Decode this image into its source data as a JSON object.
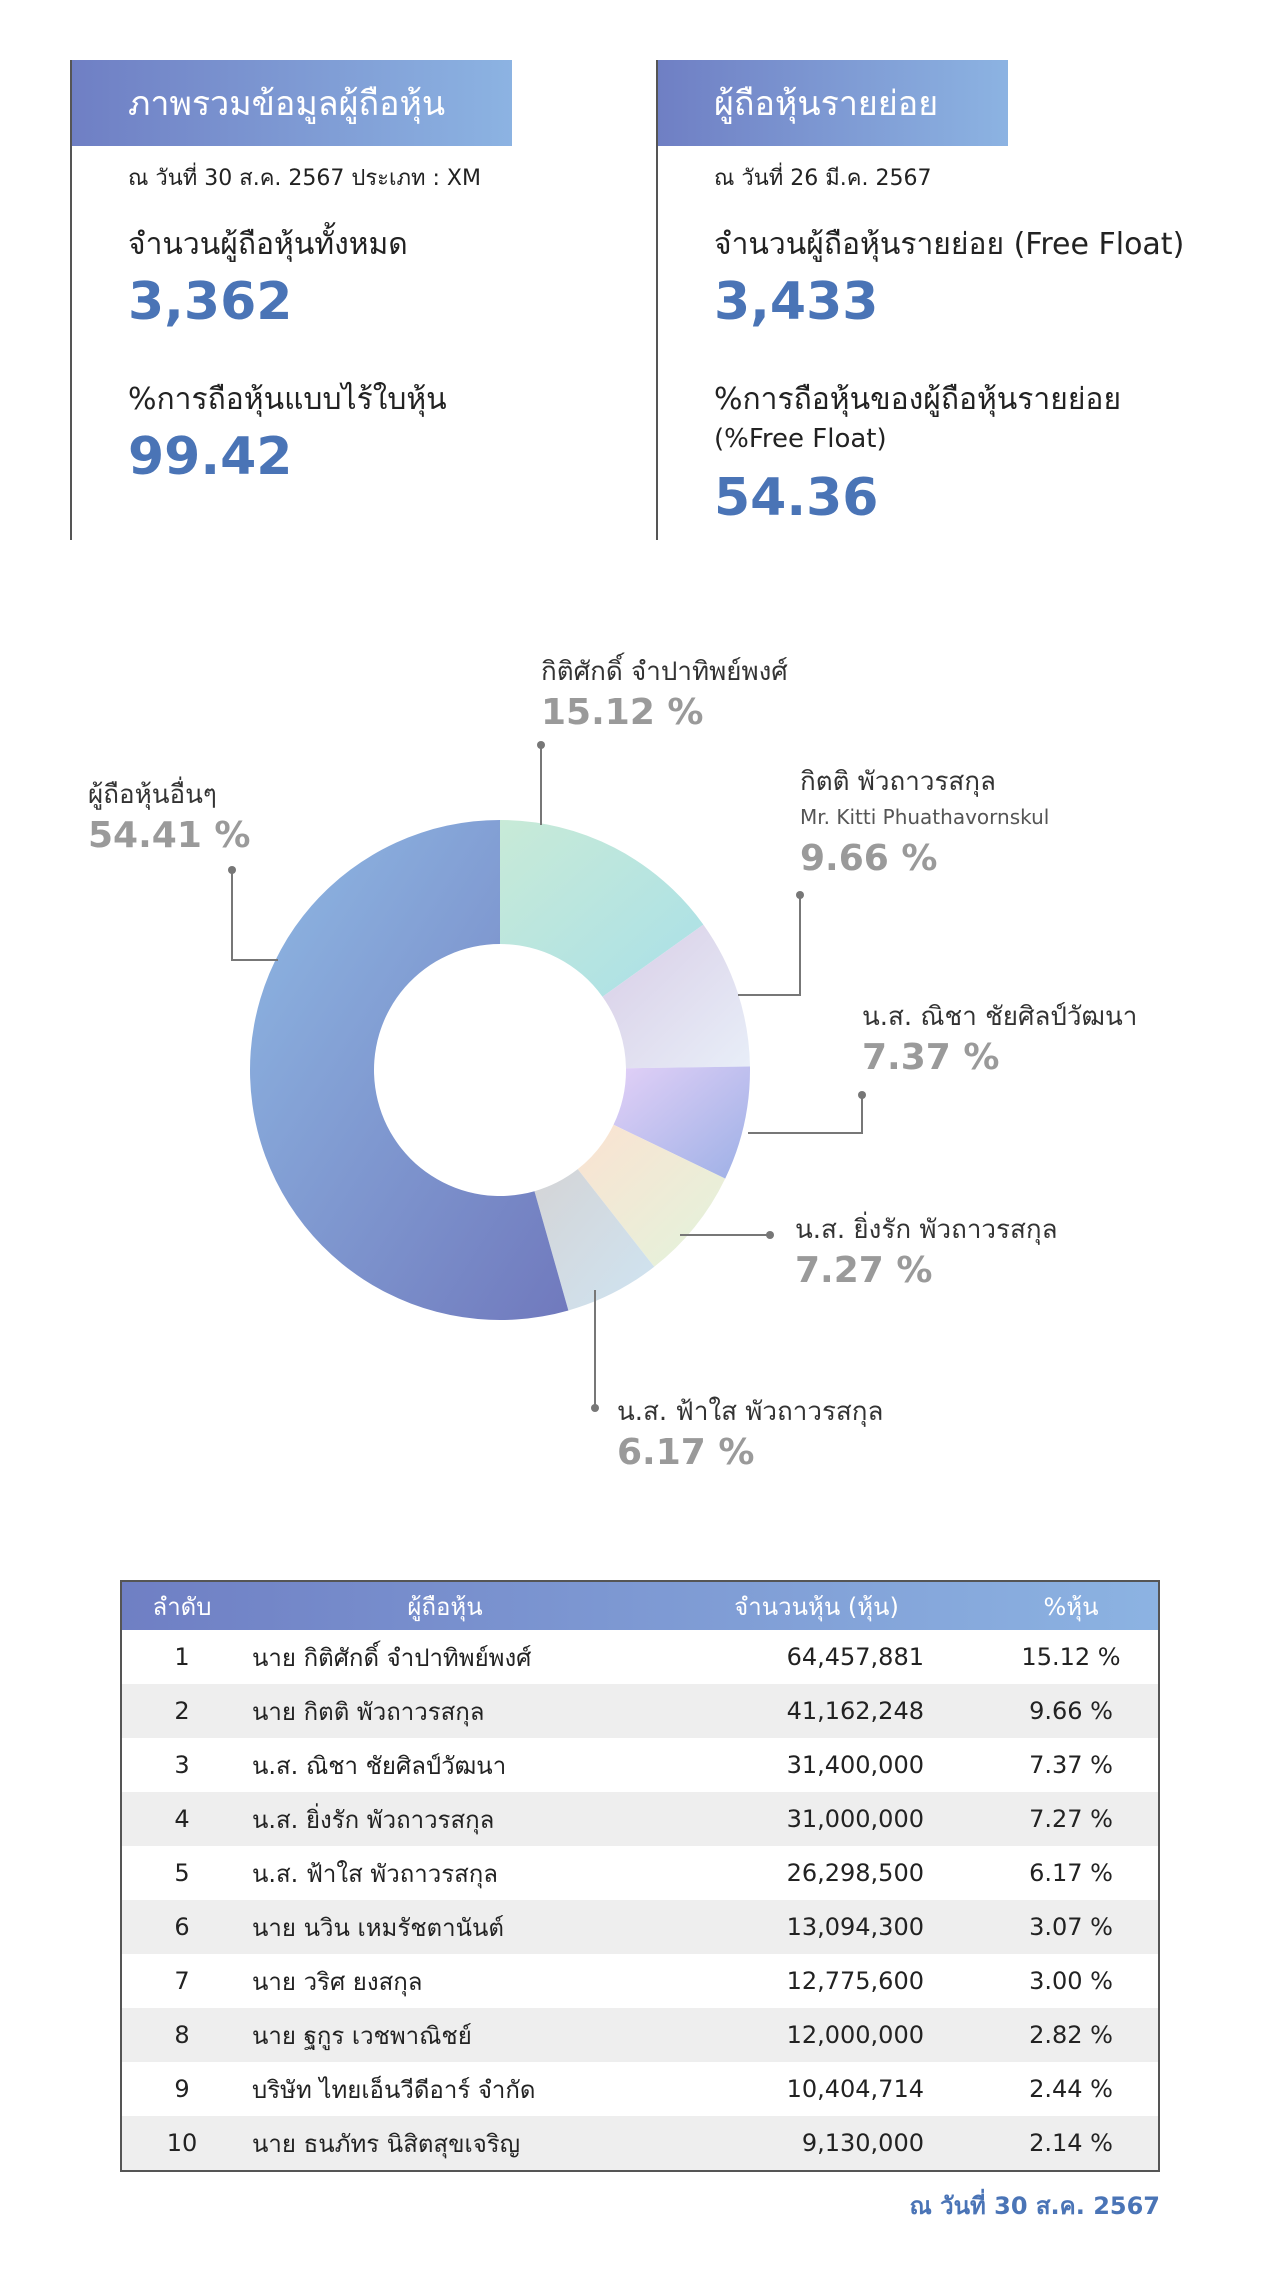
{
  "overview": {
    "title": "ภาพรวมข้อมูลผู้ถือหุ้น",
    "as_of": "ณ วันที่ 30 ส.ค. 2567  ประเภท : XM",
    "total_label": "จำนวนผู้ถือหุ้นทั้งหมด",
    "total_value": "3,362",
    "scripless_label": "%การถือหุ้นแบบไร้ใบหุ้น",
    "scripless_value": "99.42"
  },
  "minor": {
    "title": "ผู้ถือหุ้นรายย่อย",
    "as_of": "ณ วันที่ 26 มี.ค. 2567",
    "count_label": "จำนวนผู้ถือหุ้นรายย่อย (Free Float)",
    "count_value": "3,433",
    "pct_label_1": "%การถือหุ้นของผู้ถือหุ้นรายย่อย",
    "pct_label_2": "(%Free Float)",
    "pct_value": "54.36"
  },
  "chart_data": {
    "type": "pie",
    "labels": [
      "กิติศักดิ์ จำปาทิพย์พงศ์",
      "กิตติ พัวถาวรสกุล",
      "น.ส. ณิชา ชัยศิลป์วัฒนา",
      "น.ส. ยิ่งรัก พัวถาวรสกุล",
      "น.ส. ฟ้าใส พัวถาวรสกุล",
      "ผู้ถือหุ้นอื่นๆ"
    ],
    "values": [
      15.12,
      9.66,
      7.37,
      7.27,
      6.17,
      54.41
    ],
    "value_labels": [
      "15.12 %",
      "9.66 %",
      "7.37 %",
      "7.27 %",
      "6.17 %",
      "54.41 %"
    ],
    "sublabels": [
      "",
      "Mr. Kitti Phuathavornskul",
      "",
      "",
      "",
      ""
    ],
    "colors": [
      [
        "#c8ead7",
        "#a9e0e8"
      ],
      [
        "#d8cde6",
        "#e8eef8"
      ],
      [
        "#e2d0f7",
        "#9db0e6"
      ],
      [
        "#fbe2d1",
        "#e2f4dc"
      ],
      [
        "#d4d4d6",
        "#cfe4f2"
      ],
      [
        "#8fb9e4",
        "#7079bd"
      ]
    ]
  },
  "table": {
    "headers": [
      "ลำดับ",
      "ผู้ถือหุ้น",
      "จำนวนหุ้น (หุ้น)",
      "%หุ้น"
    ],
    "rows": [
      [
        "1",
        "นาย กิติศักดิ์ จำปาทิพย์พงศ์",
        "64,457,881",
        "15.12 %"
      ],
      [
        "2",
        "นาย กิตติ พัวถาวรสกุล",
        "41,162,248",
        "9.66 %"
      ],
      [
        "3",
        "น.ส. ณิชา ชัยศิลป์วัฒนา",
        "31,400,000",
        "7.37 %"
      ],
      [
        "4",
        "น.ส. ยิ่งรัก พัวถาวรสกุล",
        "31,000,000",
        "7.27 %"
      ],
      [
        "5",
        "น.ส. ฟ้าใส พัวถาวรสกุล",
        "26,298,500",
        "6.17 %"
      ],
      [
        "6",
        "นาย นวิน เหมรัชตานันต์",
        "13,094,300",
        "3.07 %"
      ],
      [
        "7",
        "นาย วริศ ยงสกุล",
        "12,775,600",
        "3.00 %"
      ],
      [
        "8",
        "นาย ฐกูร เวชพาณิชย์",
        "12,000,000",
        "2.82 %"
      ],
      [
        "9",
        "บริษัท ไทยเอ็นวีดีอาร์ จำกัด",
        "10,404,714",
        "2.44 %"
      ],
      [
        "10",
        "นาย ธนภัทร นิสิตสุขเจริญ",
        "9,130,000",
        "2.14 %"
      ]
    ]
  },
  "footer": {
    "as_of": "ณ วันที่ 30 ส.ค. 2567"
  }
}
